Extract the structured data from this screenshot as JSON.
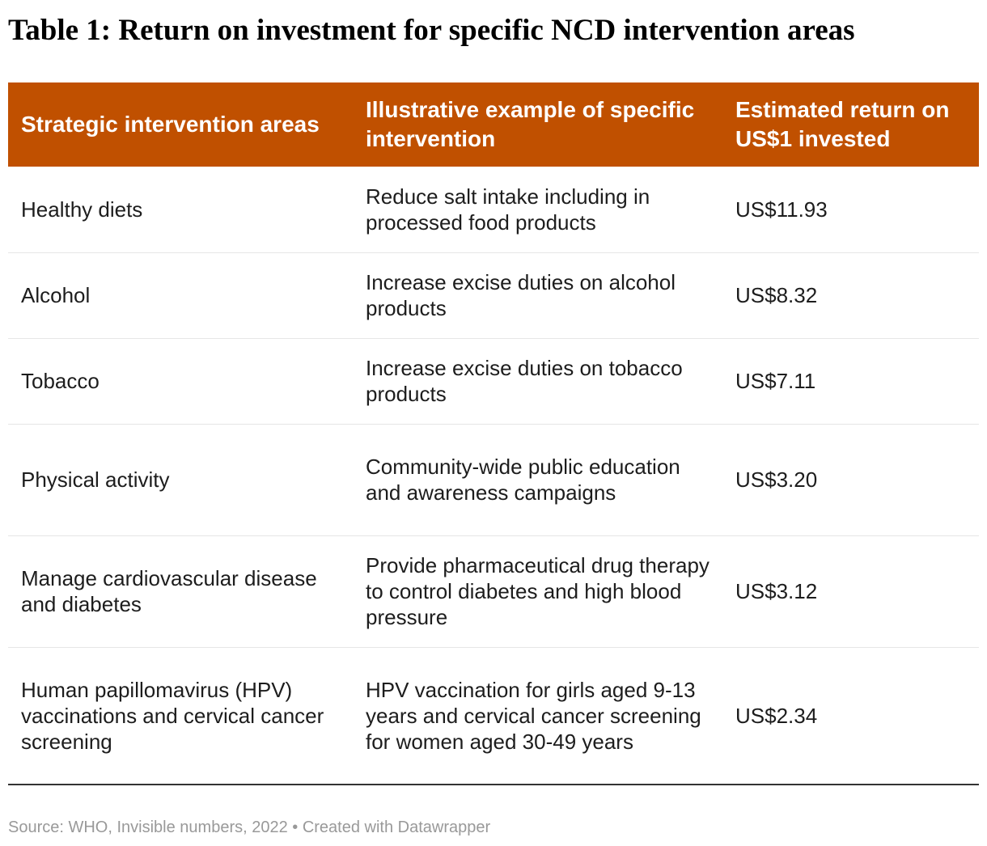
{
  "title": "Table 1: Return on investment for specific NCD intervention areas",
  "colors": {
    "header_background": "#c05000",
    "header_text": "#ffffff",
    "body_text": "#1d1d1d",
    "row_divider": "#e6e6e6",
    "source_text": "#999999"
  },
  "chart_data": {
    "type": "table",
    "title": "Table 1: Return on investment for specific NCD intervention areas",
    "columns": [
      "Strategic intervention areas",
      "Illustrative example of specific intervention",
      "Estimated return on US$1 invested"
    ],
    "rows": [
      [
        "Healthy diets",
        "Reduce salt intake including in processed food products",
        "US$11.93"
      ],
      [
        "Alcohol",
        "Increase excise duties on alcohol products",
        "US$8.32"
      ],
      [
        "Tobacco",
        "Increase excise duties on tobacco products",
        "US$7.11"
      ],
      [
        "Physical activity",
        "Community-wide public education and awareness campaigns",
        "US$3.20"
      ],
      [
        "Manage cardiovascular disease and diabetes",
        "Provide pharmaceutical drug therapy to control diabetes and high blood pressure",
        "US$3.12"
      ],
      [
        "Human papillomavirus (HPV) vaccinations and cervical cancer screening",
        "HPV vaccination for girls aged 9-13 years and cervical cancer screening for women aged 30-49 years",
        "US$2.34"
      ]
    ],
    "source": "Source: WHO, Invisible numbers, 2022 • Created with Datawrapper"
  }
}
